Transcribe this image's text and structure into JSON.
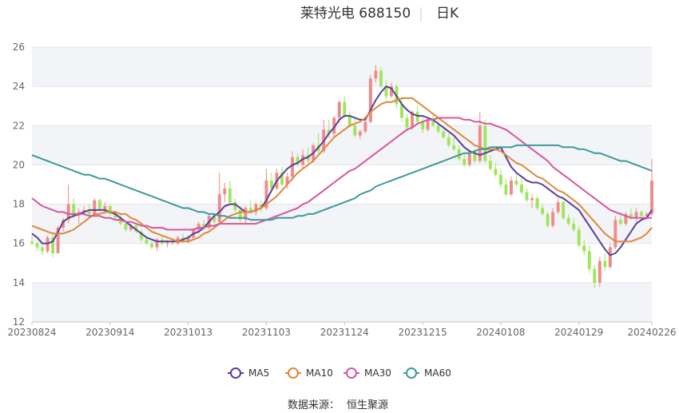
{
  "chart_data": {
    "type": "candlestick",
    "title": "莱特光电 688150",
    "period_label": "日K",
    "source_label": "数据来源：",
    "source_name": "恒生聚源",
    "ylim": [
      12,
      26
    ],
    "yticks": [
      12,
      14,
      16,
      18,
      20,
      22,
      24,
      26
    ],
    "x_tick_labels": [
      "20230824",
      "20230914",
      "20231013",
      "20231103",
      "20231124",
      "20231215",
      "20240108",
      "20240129",
      "20240226"
    ],
    "x_tick_index": [
      0,
      15,
      30,
      45,
      60,
      75,
      90,
      105,
      119
    ],
    "grid": "horizontal bands",
    "colors": {
      "up": "#f08a8a",
      "down": "#9ee65a"
    },
    "legend_position": "bottom",
    "candles": [
      [
        16.1,
        16.4,
        15.9,
        16.0
      ],
      [
        16.0,
        16.1,
        15.6,
        15.8
      ],
      [
        15.8,
        16.0,
        15.4,
        15.6
      ],
      [
        15.6,
        16.4,
        15.5,
        16.3
      ],
      [
        16.3,
        16.6,
        15.3,
        15.5
      ],
      [
        15.5,
        16.9,
        15.5,
        16.8
      ],
      [
        16.8,
        17.3,
        16.6,
        17.2
      ],
      [
        17.2,
        19.0,
        17.0,
        18.0
      ],
      [
        18.0,
        18.3,
        17.3,
        17.4
      ],
      [
        17.4,
        17.8,
        17.0,
        17.6
      ],
      [
        17.6,
        17.9,
        17.4,
        17.7
      ],
      [
        17.7,
        18.0,
        17.3,
        17.5
      ],
      [
        17.5,
        18.3,
        17.4,
        18.2
      ],
      [
        18.2,
        18.3,
        17.6,
        17.7
      ],
      [
        17.7,
        18.1,
        17.5,
        17.9
      ],
      [
        17.9,
        18.0,
        17.4,
        17.5
      ],
      [
        17.5,
        17.7,
        17.2,
        17.3
      ],
      [
        17.3,
        17.5,
        16.9,
        17.0
      ],
      [
        17.0,
        17.1,
        16.6,
        16.7
      ],
      [
        16.7,
        17.0,
        16.6,
        16.9
      ],
      [
        16.9,
        17.0,
        16.5,
        16.6
      ],
      [
        16.6,
        16.7,
        16.1,
        16.2
      ],
      [
        16.2,
        16.3,
        15.9,
        16.0
      ],
      [
        16.0,
        16.1,
        15.7,
        15.8
      ],
      [
        15.8,
        16.3,
        15.6,
        16.2
      ],
      [
        16.2,
        16.4,
        15.9,
        16.0
      ],
      [
        16.0,
        16.2,
        15.8,
        16.1
      ],
      [
        16.1,
        16.3,
        15.9,
        16.0
      ],
      [
        16.0,
        16.4,
        15.9,
        16.3
      ],
      [
        16.3,
        16.5,
        16.0,
        16.1
      ],
      [
        16.1,
        16.4,
        16.0,
        16.3
      ],
      [
        16.3,
        16.8,
        16.2,
        16.7
      ],
      [
        16.7,
        17.1,
        16.5,
        17.0
      ],
      [
        17.0,
        17.2,
        16.7,
        16.8
      ],
      [
        16.8,
        17.5,
        16.7,
        17.4
      ],
      [
        17.4,
        17.5,
        17.0,
        17.1
      ],
      [
        17.1,
        19.6,
        17.0,
        18.5
      ],
      [
        18.5,
        19.1,
        18.1,
        18.8
      ],
      [
        18.8,
        19.2,
        18.0,
        18.1
      ],
      [
        18.1,
        18.3,
        17.6,
        17.7
      ],
      [
        17.7,
        17.9,
        17.1,
        17.2
      ],
      [
        17.2,
        17.9,
        17.0,
        17.8
      ],
      [
        17.8,
        18.2,
        17.5,
        17.6
      ],
      [
        17.6,
        18.1,
        17.4,
        18.0
      ],
      [
        18.0,
        18.2,
        17.6,
        17.8
      ],
      [
        17.8,
        19.8,
        17.7,
        19.2
      ],
      [
        19.2,
        19.6,
        18.6,
        18.8
      ],
      [
        18.8,
        19.8,
        18.7,
        19.6
      ],
      [
        19.6,
        19.9,
        18.9,
        19.0
      ],
      [
        19.0,
        19.6,
        18.8,
        19.4
      ],
      [
        19.4,
        20.7,
        19.2,
        20.4
      ],
      [
        20.4,
        20.6,
        19.9,
        20.0
      ],
      [
        20.0,
        20.8,
        19.8,
        20.5
      ],
      [
        20.5,
        20.9,
        20.1,
        20.2
      ],
      [
        20.2,
        21.1,
        20.1,
        21.0
      ],
      [
        21.0,
        21.6,
        20.6,
        20.7
      ],
      [
        20.7,
        22.3,
        20.6,
        21.8
      ],
      [
        21.8,
        22.3,
        21.4,
        21.6
      ],
      [
        21.6,
        22.5,
        21.4,
        22.4
      ],
      [
        22.4,
        23.3,
        22.1,
        23.2
      ],
      [
        23.2,
        23.5,
        22.4,
        22.5
      ],
      [
        22.5,
        22.7,
        21.9,
        22.0
      ],
      [
        22.0,
        22.4,
        21.4,
        21.5
      ],
      [
        21.5,
        21.8,
        21.3,
        21.7
      ],
      [
        21.7,
        22.3,
        21.6,
        22.2
      ],
      [
        22.2,
        24.6,
        22.1,
        24.4
      ],
      [
        24.4,
        25.1,
        24.2,
        24.8
      ],
      [
        24.8,
        25.0,
        23.9,
        24.0
      ],
      [
        24.0,
        24.3,
        23.3,
        23.5
      ],
      [
        23.5,
        24.2,
        23.4,
        24.0
      ],
      [
        24.0,
        24.1,
        22.9,
        23.1
      ],
      [
        23.1,
        23.4,
        22.2,
        22.4
      ],
      [
        22.4,
        22.6,
        21.7,
        21.9
      ],
      [
        21.9,
        22.8,
        21.8,
        22.7
      ],
      [
        22.7,
        23.0,
        22.1,
        22.2
      ],
      [
        22.2,
        22.5,
        21.6,
        21.8
      ],
      [
        21.8,
        22.4,
        21.7,
        22.3
      ],
      [
        22.3,
        22.6,
        21.9,
        22.0
      ],
      [
        22.0,
        22.3,
        21.6,
        21.7
      ],
      [
        21.7,
        22.0,
        21.3,
        21.4
      ],
      [
        21.4,
        21.6,
        20.9,
        21.0
      ],
      [
        21.0,
        21.4,
        20.7,
        20.8
      ],
      [
        20.8,
        21.0,
        20.2,
        20.3
      ],
      [
        20.3,
        20.6,
        19.9,
        20.0
      ],
      [
        20.0,
        20.8,
        19.9,
        20.6
      ],
      [
        20.6,
        20.8,
        20.1,
        20.2
      ],
      [
        20.2,
        22.7,
        20.1,
        22.0
      ],
      [
        22.0,
        22.3,
        20.1,
        20.2
      ],
      [
        20.2,
        20.5,
        19.7,
        19.8
      ],
      [
        19.8,
        20.1,
        19.4,
        19.5
      ],
      [
        19.5,
        19.8,
        18.8,
        19.0
      ],
      [
        19.0,
        19.3,
        18.4,
        18.5
      ],
      [
        18.5,
        19.4,
        18.4,
        19.2
      ],
      [
        19.2,
        19.5,
        18.9,
        19.0
      ],
      [
        19.0,
        19.3,
        18.5,
        18.6
      ],
      [
        18.6,
        18.8,
        18.1,
        18.2
      ],
      [
        18.2,
        18.5,
        17.8,
        18.3
      ],
      [
        18.3,
        18.4,
        17.7,
        17.8
      ],
      [
        17.8,
        18.0,
        17.4,
        17.5
      ],
      [
        17.5,
        17.6,
        16.8,
        16.9
      ],
      [
        16.9,
        17.8,
        16.8,
        17.6
      ],
      [
        17.6,
        18.3,
        17.5,
        18.1
      ],
      [
        18.1,
        18.4,
        17.2,
        17.3
      ],
      [
        17.3,
        17.5,
        16.9,
        17.0
      ],
      [
        17.0,
        17.3,
        16.6,
        16.7
      ],
      [
        16.7,
        16.9,
        15.8,
        15.9
      ],
      [
        15.9,
        16.2,
        15.4,
        15.6
      ],
      [
        15.6,
        15.9,
        14.5,
        14.7
      ],
      [
        14.7,
        14.9,
        13.7,
        14.0
      ],
      [
        14.0,
        15.3,
        13.8,
        15.1
      ],
      [
        15.1,
        15.5,
        14.6,
        14.8
      ],
      [
        14.8,
        16.0,
        14.7,
        15.8
      ],
      [
        15.8,
        17.4,
        15.7,
        17.2
      ],
      [
        17.2,
        17.6,
        16.9,
        17.0
      ],
      [
        17.0,
        17.6,
        16.9,
        17.5
      ],
      [
        17.5,
        17.8,
        17.2,
        17.3
      ],
      [
        17.3,
        17.8,
        17.1,
        17.6
      ],
      [
        17.6,
        17.7,
        17.3,
        17.4
      ],
      [
        17.4,
        17.6,
        17.2,
        17.5
      ],
      [
        17.5,
        20.3,
        17.4,
        19.2
      ]
    ],
    "series": [
      {
        "name": "MA5",
        "color": "#5a3f99",
        "values": [
          16.5,
          16.3,
          16.0,
          16.0,
          16.1,
          16.6,
          17.1,
          17.3,
          17.4,
          17.5,
          17.6,
          17.7,
          17.7,
          17.7,
          17.7,
          17.6,
          17.5,
          17.3,
          17.1,
          16.9,
          16.7,
          16.5,
          16.3,
          16.2,
          16.1,
          16.1,
          16.1,
          16.1,
          16.1,
          16.2,
          16.3,
          16.5,
          16.6,
          16.8,
          17.1,
          17.4,
          17.6,
          17.9,
          18.0,
          18.0,
          17.8,
          17.6,
          17.6,
          17.7,
          17.8,
          18.2,
          18.7,
          19.2,
          19.5,
          19.8,
          20.0,
          20.1,
          20.3,
          20.4,
          20.6,
          20.9,
          21.2,
          21.6,
          21.9,
          22.3,
          22.5,
          22.5,
          22.4,
          22.3,
          22.3,
          22.8,
          23.3,
          23.7,
          24.0,
          23.9,
          23.5,
          23.1,
          22.8,
          22.6,
          22.5,
          22.5,
          22.4,
          22.3,
          22.1,
          21.9,
          21.7,
          21.5,
          21.2,
          20.9,
          20.7,
          20.6,
          20.5,
          20.6,
          20.7,
          20.8,
          20.9,
          20.4,
          19.9,
          19.6,
          19.4,
          19.2,
          19.1,
          19.1,
          19.0,
          18.8,
          18.6,
          18.4,
          18.3,
          18.1,
          17.9,
          17.7,
          17.3,
          16.9,
          16.5,
          16.1,
          15.7,
          15.4,
          15.5,
          15.8,
          16.2,
          16.6,
          17.0,
          17.2,
          17.3,
          17.7
        ]
      },
      {
        "name": "MA10",
        "color": "#e0883a",
        "values": [
          16.9,
          16.8,
          16.7,
          16.6,
          16.5,
          16.5,
          16.5,
          16.6,
          16.7,
          16.9,
          17.1,
          17.3,
          17.5,
          17.5,
          17.6,
          17.6,
          17.6,
          17.5,
          17.5,
          17.3,
          17.2,
          17.0,
          16.8,
          16.6,
          16.5,
          16.4,
          16.3,
          16.2,
          16.1,
          16.1,
          16.1,
          16.2,
          16.3,
          16.5,
          16.6,
          16.8,
          17.0,
          17.2,
          17.4,
          17.5,
          17.6,
          17.6,
          17.6,
          17.7,
          17.8,
          18.0,
          18.2,
          18.4,
          18.7,
          19.0,
          19.3,
          19.6,
          19.8,
          20.0,
          20.2,
          20.5,
          20.8,
          21.1,
          21.4,
          21.6,
          21.8,
          22.0,
          22.1,
          22.2,
          22.4,
          22.7,
          22.9,
          23.1,
          23.2,
          23.2,
          23.3,
          23.4,
          23.4,
          23.4,
          23.2,
          23.0,
          22.8,
          22.6,
          22.4,
          22.2,
          22.0,
          21.8,
          21.6,
          21.4,
          21.2,
          21.0,
          20.9,
          20.8,
          20.8,
          20.8,
          20.7,
          20.5,
          20.3,
          20.1,
          20.0,
          19.8,
          19.6,
          19.4,
          19.3,
          19.1,
          18.9,
          18.7,
          18.6,
          18.4,
          18.2,
          18.0,
          17.7,
          17.4,
          17.1,
          16.8,
          16.5,
          16.3,
          16.1,
          16.1,
          16.1,
          16.1,
          16.2,
          16.3,
          16.5,
          16.8
        ]
      },
      {
        "name": "MA30",
        "color": "#d4579e",
        "values": [
          18.3,
          18.1,
          17.9,
          17.8,
          17.7,
          17.6,
          17.6,
          17.5,
          17.5,
          17.5,
          17.5,
          17.4,
          17.4,
          17.4,
          17.3,
          17.3,
          17.2,
          17.2,
          17.1,
          17.1,
          17.0,
          16.9,
          16.9,
          16.8,
          16.8,
          16.8,
          16.7,
          16.7,
          16.7,
          16.7,
          16.7,
          16.7,
          16.8,
          16.8,
          16.9,
          16.9,
          17.0,
          17.0,
          17.0,
          17.0,
          17.0,
          17.0,
          17.0,
          17.0,
          17.1,
          17.2,
          17.3,
          17.4,
          17.5,
          17.6,
          17.7,
          17.8,
          18.0,
          18.1,
          18.3,
          18.5,
          18.7,
          18.9,
          19.1,
          19.3,
          19.5,
          19.7,
          19.8,
          20.0,
          20.2,
          20.4,
          20.6,
          20.8,
          21.0,
          21.2,
          21.4,
          21.6,
          21.8,
          21.9,
          22.1,
          22.2,
          22.3,
          22.3,
          22.4,
          22.4,
          22.4,
          22.4,
          22.4,
          22.3,
          22.3,
          22.2,
          22.2,
          22.1,
          22.1,
          22.0,
          21.9,
          21.8,
          21.6,
          21.4,
          21.2,
          21.0,
          20.8,
          20.6,
          20.4,
          20.2,
          19.9,
          19.7,
          19.5,
          19.3,
          19.1,
          18.9,
          18.7,
          18.5,
          18.3,
          18.1,
          17.9,
          17.7,
          17.6,
          17.5,
          17.4,
          17.3,
          17.3,
          17.3,
          17.3,
          17.3
        ]
      },
      {
        "name": "MA60",
        "color": "#3c9a9a",
        "values": [
          20.5,
          20.4,
          20.3,
          20.2,
          20.1,
          20.0,
          19.9,
          19.8,
          19.7,
          19.6,
          19.5,
          19.5,
          19.4,
          19.3,
          19.3,
          19.2,
          19.1,
          19.0,
          18.9,
          18.8,
          18.7,
          18.6,
          18.5,
          18.4,
          18.3,
          18.2,
          18.1,
          18.0,
          17.9,
          17.8,
          17.8,
          17.7,
          17.6,
          17.6,
          17.5,
          17.5,
          17.4,
          17.4,
          17.3,
          17.3,
          17.3,
          17.3,
          17.2,
          17.2,
          17.2,
          17.2,
          17.2,
          17.3,
          17.3,
          17.3,
          17.3,
          17.4,
          17.4,
          17.5,
          17.5,
          17.6,
          17.7,
          17.8,
          17.9,
          18.0,
          18.1,
          18.2,
          18.3,
          18.5,
          18.6,
          18.7,
          18.9,
          19.0,
          19.1,
          19.2,
          19.3,
          19.4,
          19.5,
          19.6,
          19.7,
          19.8,
          19.9,
          20.0,
          20.1,
          20.2,
          20.3,
          20.4,
          20.5,
          20.6,
          20.6,
          20.7,
          20.8,
          20.8,
          20.9,
          20.9,
          20.9,
          20.9,
          20.9,
          21.0,
          21.0,
          21.0,
          21.0,
          21.0,
          21.0,
          21.0,
          21.0,
          21.0,
          20.9,
          20.9,
          20.9,
          20.8,
          20.8,
          20.7,
          20.6,
          20.6,
          20.5,
          20.4,
          20.3,
          20.2,
          20.2,
          20.1,
          20.0,
          19.9,
          19.8,
          19.7
        ]
      }
    ]
  }
}
